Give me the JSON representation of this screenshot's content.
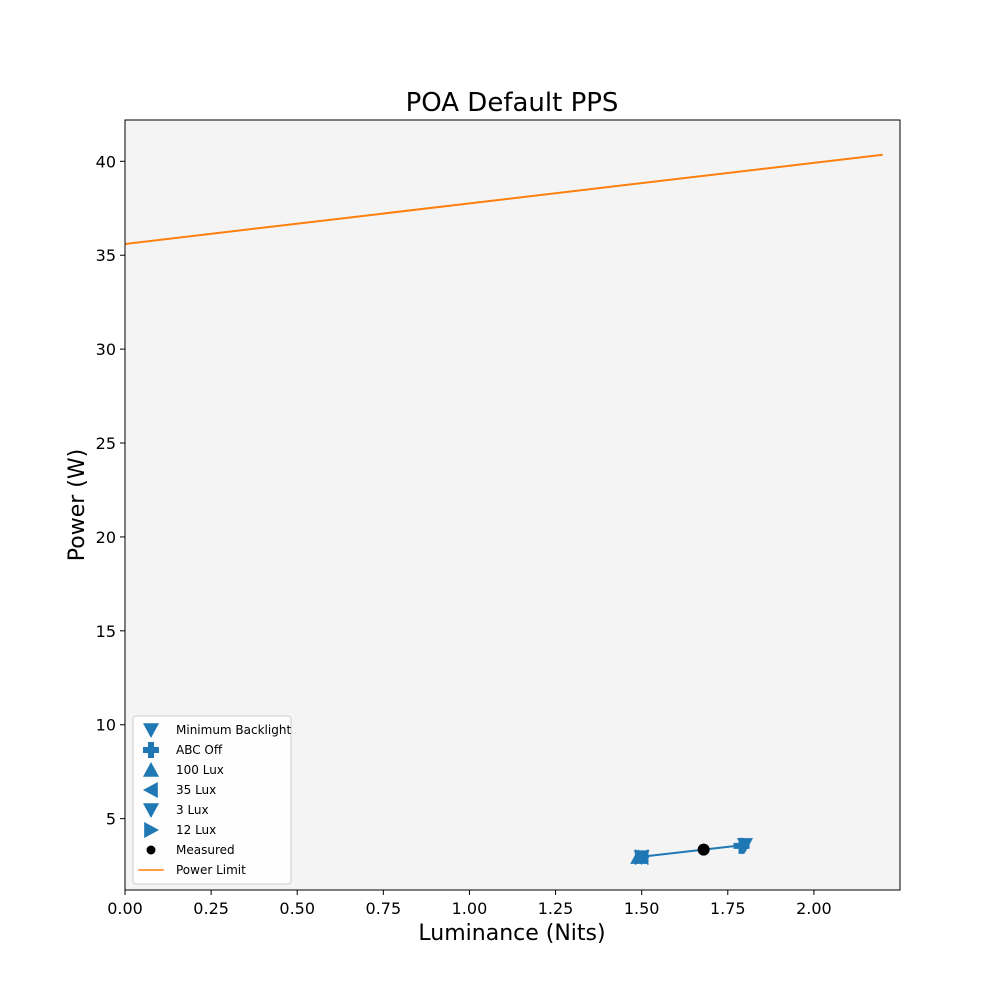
{
  "chart_data": {
    "type": "scatter",
    "title": "POA Default PPS",
    "xlabel": "Luminance (Nits)",
    "ylabel": "Power (W)",
    "xlim": [
      0.0,
      2.25
    ],
    "ylim": [
      1.2,
      42.2
    ],
    "xticks": [
      "0.00",
      "0.25",
      "0.50",
      "0.75",
      "1.00",
      "1.25",
      "1.50",
      "1.75",
      "2.00"
    ],
    "yticks": [
      "5",
      "10",
      "15",
      "20",
      "25",
      "30",
      "35",
      "40"
    ],
    "background_color": "#f4f4f4",
    "series_color": "#1f77b4",
    "limit_color": "#ff7f0e",
    "legend_position": "lower-left",
    "series": [
      {
        "name": "Minimum Backlight",
        "marker": "triangle-down",
        "x": [
          1.8
        ],
        "y": [
          3.6
        ]
      },
      {
        "name": "ABC Off",
        "marker": "plus",
        "x": [
          1.79
        ],
        "y": [
          3.55
        ]
      },
      {
        "name": "100 Lux",
        "marker": "triangle-up",
        "x": [
          1.49
        ],
        "y": [
          2.95
        ]
      },
      {
        "name": "35 Lux",
        "marker": "triangle-left",
        "x": [
          1.5
        ],
        "y": [
          2.95
        ]
      },
      {
        "name": "3 Lux",
        "marker": "triangle-down",
        "x": [
          1.5
        ],
        "y": [
          2.95
        ]
      },
      {
        "name": "12 Lux",
        "marker": "triangle-right",
        "x": [
          1.5
        ],
        "y": [
          2.95
        ]
      },
      {
        "name": "Measured",
        "marker": "circle",
        "x": [
          1.68
        ],
        "y": [
          3.35
        ]
      },
      {
        "name": "Power Limit",
        "marker": "line",
        "x": [
          0.0,
          2.2
        ],
        "y": [
          35.6,
          40.35
        ]
      }
    ],
    "connector_line": {
      "x": [
        1.49,
        1.8
      ],
      "y": [
        2.95,
        3.6
      ]
    }
  }
}
